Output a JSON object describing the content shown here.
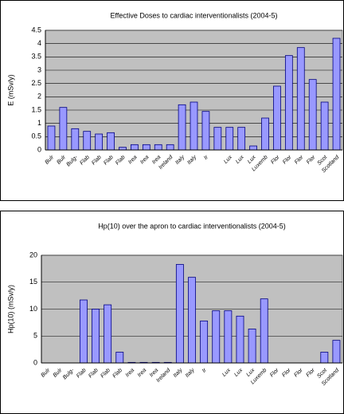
{
  "chart_data": [
    {
      "type": "bar",
      "title": "Effective Doses to cardiac interventionalists (2004-5)",
      "y_label": "E (mSv/y)",
      "categories": [
        "Bulr",
        "Bulr",
        "Bulg-",
        "Flab",
        "Flab",
        "Flab",
        "Flab",
        "Irea",
        "Irea",
        "Irea",
        "Ireland",
        "Italy",
        "Italy",
        "Ir",
        null,
        "Lux",
        "Lux",
        "Lux",
        "Luxemb",
        "Flor",
        "Flor",
        "Flor",
        "Flor",
        "Scot",
        "Scotland"
      ],
      "values": [
        0.9,
        1.6,
        0.8,
        0.7,
        0.6,
        0.65,
        0.1,
        0.2,
        0.2,
        0.2,
        0.2,
        1.7,
        1.8,
        1.45,
        0.85,
        0.85,
        0.85,
        0.15,
        1.2,
        2.4,
        3.55,
        3.85,
        2.65,
        1.8,
        4.2
      ],
      "color": "#9999ff",
      "ylim": [
        0,
        4.5
      ],
      "yticks": [
        0,
        0.5,
        1,
        1.5,
        2,
        2.5,
        3,
        3.5,
        4,
        4.5
      ],
      "grid": true
    },
    {
      "type": "bar",
      "title": "Hp(10) over the apron to cardiac interventionalists (2004-5)",
      "y_label": "Hp(10) (mSv/y)",
      "categories": [
        "Bulr",
        "Bulr",
        "Bulg-",
        "Flab",
        "Flab",
        "Flab",
        "Flab",
        "Irea",
        "Irea",
        "Irea",
        "Ireland",
        "Italy",
        "Italy",
        "Ir",
        null,
        "Lux",
        "Lux",
        "Lux",
        "Luxemb",
        "Flor",
        "Flor",
        "Flor",
        "Flor",
        "Scot",
        "Scotland"
      ],
      "values": [
        null,
        null,
        null,
        11.7,
        10,
        10.8,
        2,
        0.1,
        0.1,
        0.1,
        0.1,
        18.3,
        15.9,
        7.8,
        9.7,
        9.7,
        8.7,
        6.3,
        11.9,
        null,
        null,
        null,
        null,
        2,
        4.2
      ],
      "color": "#9999ff",
      "ylim": [
        0,
        20
      ],
      "yticks": [
        0,
        5,
        10,
        15,
        20
      ],
      "grid": true
    }
  ]
}
